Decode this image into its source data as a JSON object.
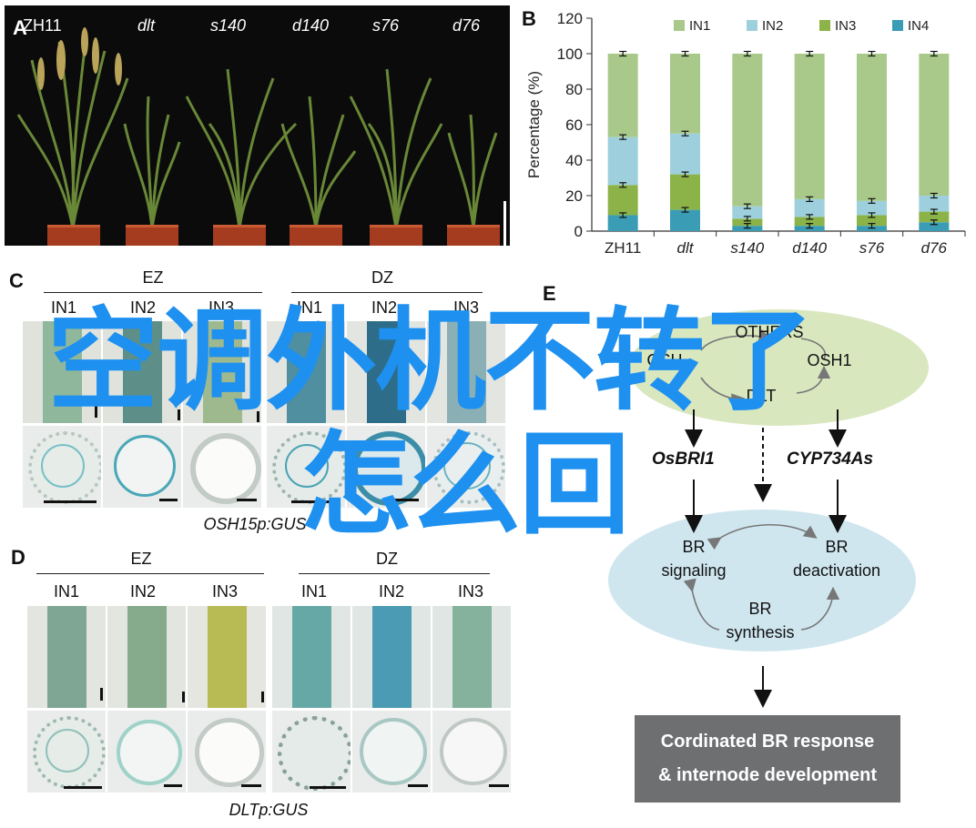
{
  "panels": {
    "a_letter": "A",
    "b_letter": "B",
    "c_letter": "C",
    "d_letter": "D",
    "e_letter": "E"
  },
  "panel_a": {
    "labels": [
      "ZH11",
      "dlt",
      "s140",
      "d140",
      "s76",
      "d76"
    ]
  },
  "chart_data": {
    "type": "bar",
    "stacked": true,
    "categories": [
      "ZH11",
      "dlt",
      "s140",
      "d140",
      "s76",
      "d76"
    ],
    "series": [
      {
        "name": "IN4",
        "values": [
          9,
          12,
          3,
          3,
          3,
          5
        ]
      },
      {
        "name": "IN3",
        "values": [
          17,
          20,
          4,
          5,
          6,
          6
        ]
      },
      {
        "name": "IN2",
        "values": [
          27,
          23,
          7,
          10,
          8,
          9
        ]
      },
      {
        "name": "IN1",
        "values": [
          47,
          45,
          86,
          82,
          83,
          80
        ]
      }
    ],
    "error_at": [
      [
        9,
        26,
        53,
        100
      ],
      [
        12,
        32,
        55,
        100
      ],
      [
        3,
        7,
        14,
        100
      ],
      [
        3,
        8,
        18,
        100
      ],
      [
        3,
        9,
        17,
        100
      ],
      [
        5,
        11,
        20,
        100
      ]
    ],
    "legend_order": [
      "IN1",
      "IN2",
      "IN3",
      "IN4"
    ],
    "colors": {
      "IN1": "#a8c98a",
      "IN2": "#9dd0dc",
      "IN3": "#8cb348",
      "IN4": "#3a9cb5"
    },
    "ylabel": "Percentage (%)",
    "ylim": [
      0,
      120
    ],
    "yticks": [
      0,
      20,
      40,
      60,
      80,
      100,
      120
    ],
    "legend_position": "top"
  },
  "panel_c": {
    "groups": [
      "EZ",
      "DZ"
    ],
    "columns": [
      "IN1",
      "IN2",
      "IN3",
      "IN1",
      "IN2",
      "IN3"
    ],
    "caption": "OSH15p:GUS"
  },
  "panel_d": {
    "groups": [
      "EZ",
      "DZ"
    ],
    "columns": [
      "IN1",
      "IN2",
      "IN3",
      "IN1",
      "IN2",
      "IN3"
    ],
    "caption": "DLTp:GUS"
  },
  "panel_e": {
    "top_left": "OSH",
    "top_mid": "OTHERS",
    "top_right": "OSH1",
    "top_bottom": "DLT",
    "left_gene": "OsBRI1",
    "right_gene": "CYP734As",
    "signaling": "BR\nsignaling",
    "deactivation": "BR\ndeactivation",
    "synthesis": "BR\nsynthesis",
    "response_line1": "Cordinated BR response",
    "response_line2": "& internode development",
    "colors": {
      "top_ellipse": "#d9e7bf",
      "bottom_ellipse": "#cfe6ef",
      "box": "#6d6f70"
    }
  },
  "watermark": {
    "line1": "空调外机不转了",
    "line2": "怎么回"
  }
}
